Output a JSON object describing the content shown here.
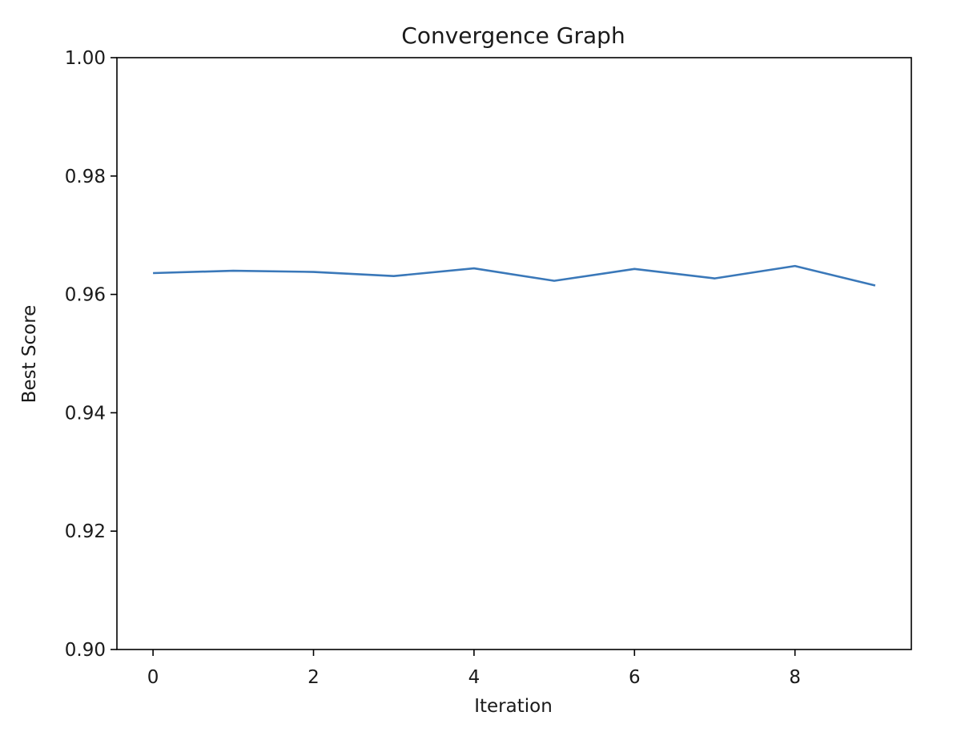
{
  "chart_data": {
    "type": "line",
    "title": "Convergence Graph",
    "xlabel": "Iteration",
    "ylabel": "Best Score",
    "xlim": [
      -0.45,
      9.45
    ],
    "ylim": [
      0.9,
      1.0
    ],
    "xticks": [
      0,
      2,
      4,
      6,
      8
    ],
    "xtick_labels": [
      "0",
      "2",
      "4",
      "6",
      "8"
    ],
    "yticks": [
      0.9,
      0.92,
      0.94,
      0.96,
      0.98,
      1.0
    ],
    "ytick_labels": [
      "0.90",
      "0.92",
      "0.94",
      "0.96",
      "0.98",
      "1.00"
    ],
    "grid": false,
    "series": [
      {
        "color": "#3a78b9",
        "x": [
          0,
          1,
          2,
          3,
          4,
          5,
          6,
          7,
          8,
          9
        ],
        "y": [
          0.9636,
          0.964,
          0.9638,
          0.9631,
          0.9644,
          0.9623,
          0.9643,
          0.9627,
          0.9648,
          0.9615
        ]
      }
    ]
  }
}
